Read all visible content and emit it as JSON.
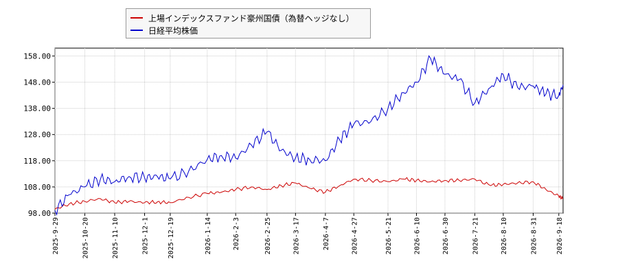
{
  "chart_data": {
    "type": "line",
    "title": "",
    "xlabel": "",
    "ylabel": "",
    "ylim": [
      98,
      161
    ],
    "yticks": [
      98,
      108,
      118,
      128,
      138,
      148,
      158
    ],
    "ytick_labels": [
      "98.00",
      "108.00",
      "118.00",
      "128.00",
      "138.00",
      "148.00",
      "158.00"
    ],
    "xtick_labels": [
      "2025-9-29",
      "2025-10-20",
      "2025-11-10",
      "2025-12-1",
      "2025-12-19",
      "2026-1-14",
      "2026-2-3",
      "2026-2-25",
      "2026-3-17",
      "2026-4-7",
      "2026-4-27",
      "2026-5-21",
      "2026-6-10",
      "2026-6-30",
      "2026-7-21",
      "2026-8-10",
      "2026-8-31",
      "2026-9-18"
    ],
    "grid": true,
    "legend_position": "top-left",
    "x": [
      "2025-9-29",
      "2025-10-9",
      "2025-10-20",
      "2025-10-31",
      "2025-11-10",
      "2025-11-20",
      "2025-12-1",
      "2025-12-10",
      "2025-12-19",
      "2026-1-1",
      "2026-1-14",
      "2026-1-24",
      "2026-2-3",
      "2026-2-14",
      "2026-2-25",
      "2026-3-7",
      "2026-3-17",
      "2026-3-27",
      "2026-4-7",
      "2026-4-17",
      "2026-4-27",
      "2026-5-9",
      "2026-5-21",
      "2026-6-1",
      "2026-6-10",
      "2026-6-20",
      "2026-6-30",
      "2026-7-10",
      "2026-7-21",
      "2026-8-1",
      "2026-8-10",
      "2026-8-20",
      "2026-8-31",
      "2026-9-9",
      "2026-9-18",
      "2026-9-21"
    ],
    "series": [
      {
        "name": "上場インデックスファンド豪州国債（為替ヘッジなし）",
        "color": "#cc0000",
        "values": [
          99.5,
          101.5,
          102.5,
          103.5,
          102.0,
          102.5,
          102.0,
          102.3,
          102.0,
          104.0,
          105.5,
          106.0,
          107.0,
          108.0,
          107.0,
          108.5,
          109.5,
          107.5,
          106.0,
          108.5,
          111.0,
          110.5,
          110.0,
          111.0,
          110.5,
          110.0,
          110.5,
          110.5,
          111.0,
          108.5,
          109.0,
          109.5,
          110.0,
          107.0,
          104.5,
          103.5
        ]
      },
      {
        "name": "日経平均株価",
        "color": "#0000cc",
        "values": [
          99.0,
          105.0,
          108.0,
          111.0,
          110.0,
          112.0,
          111.5,
          112.0,
          111.0,
          114.0,
          118.5,
          120.0,
          119.0,
          124.0,
          129.0,
          122.0,
          119.0,
          118.5,
          118.0,
          126.0,
          132.0,
          133.0,
          138.0,
          144.0,
          148.0,
          157.0,
          151.0,
          149.0,
          140.0,
          146.0,
          151.0,
          146.0,
          146.5,
          143.5,
          143.0,
          147.0
        ]
      }
    ]
  },
  "legend": {
    "entries": [
      {
        "label": "上場インデックスファンド豪州国債（為替ヘッジなし）",
        "color": "#cc0000"
      },
      {
        "label": "日経平均株価",
        "color": "#0000cc"
      }
    ]
  }
}
